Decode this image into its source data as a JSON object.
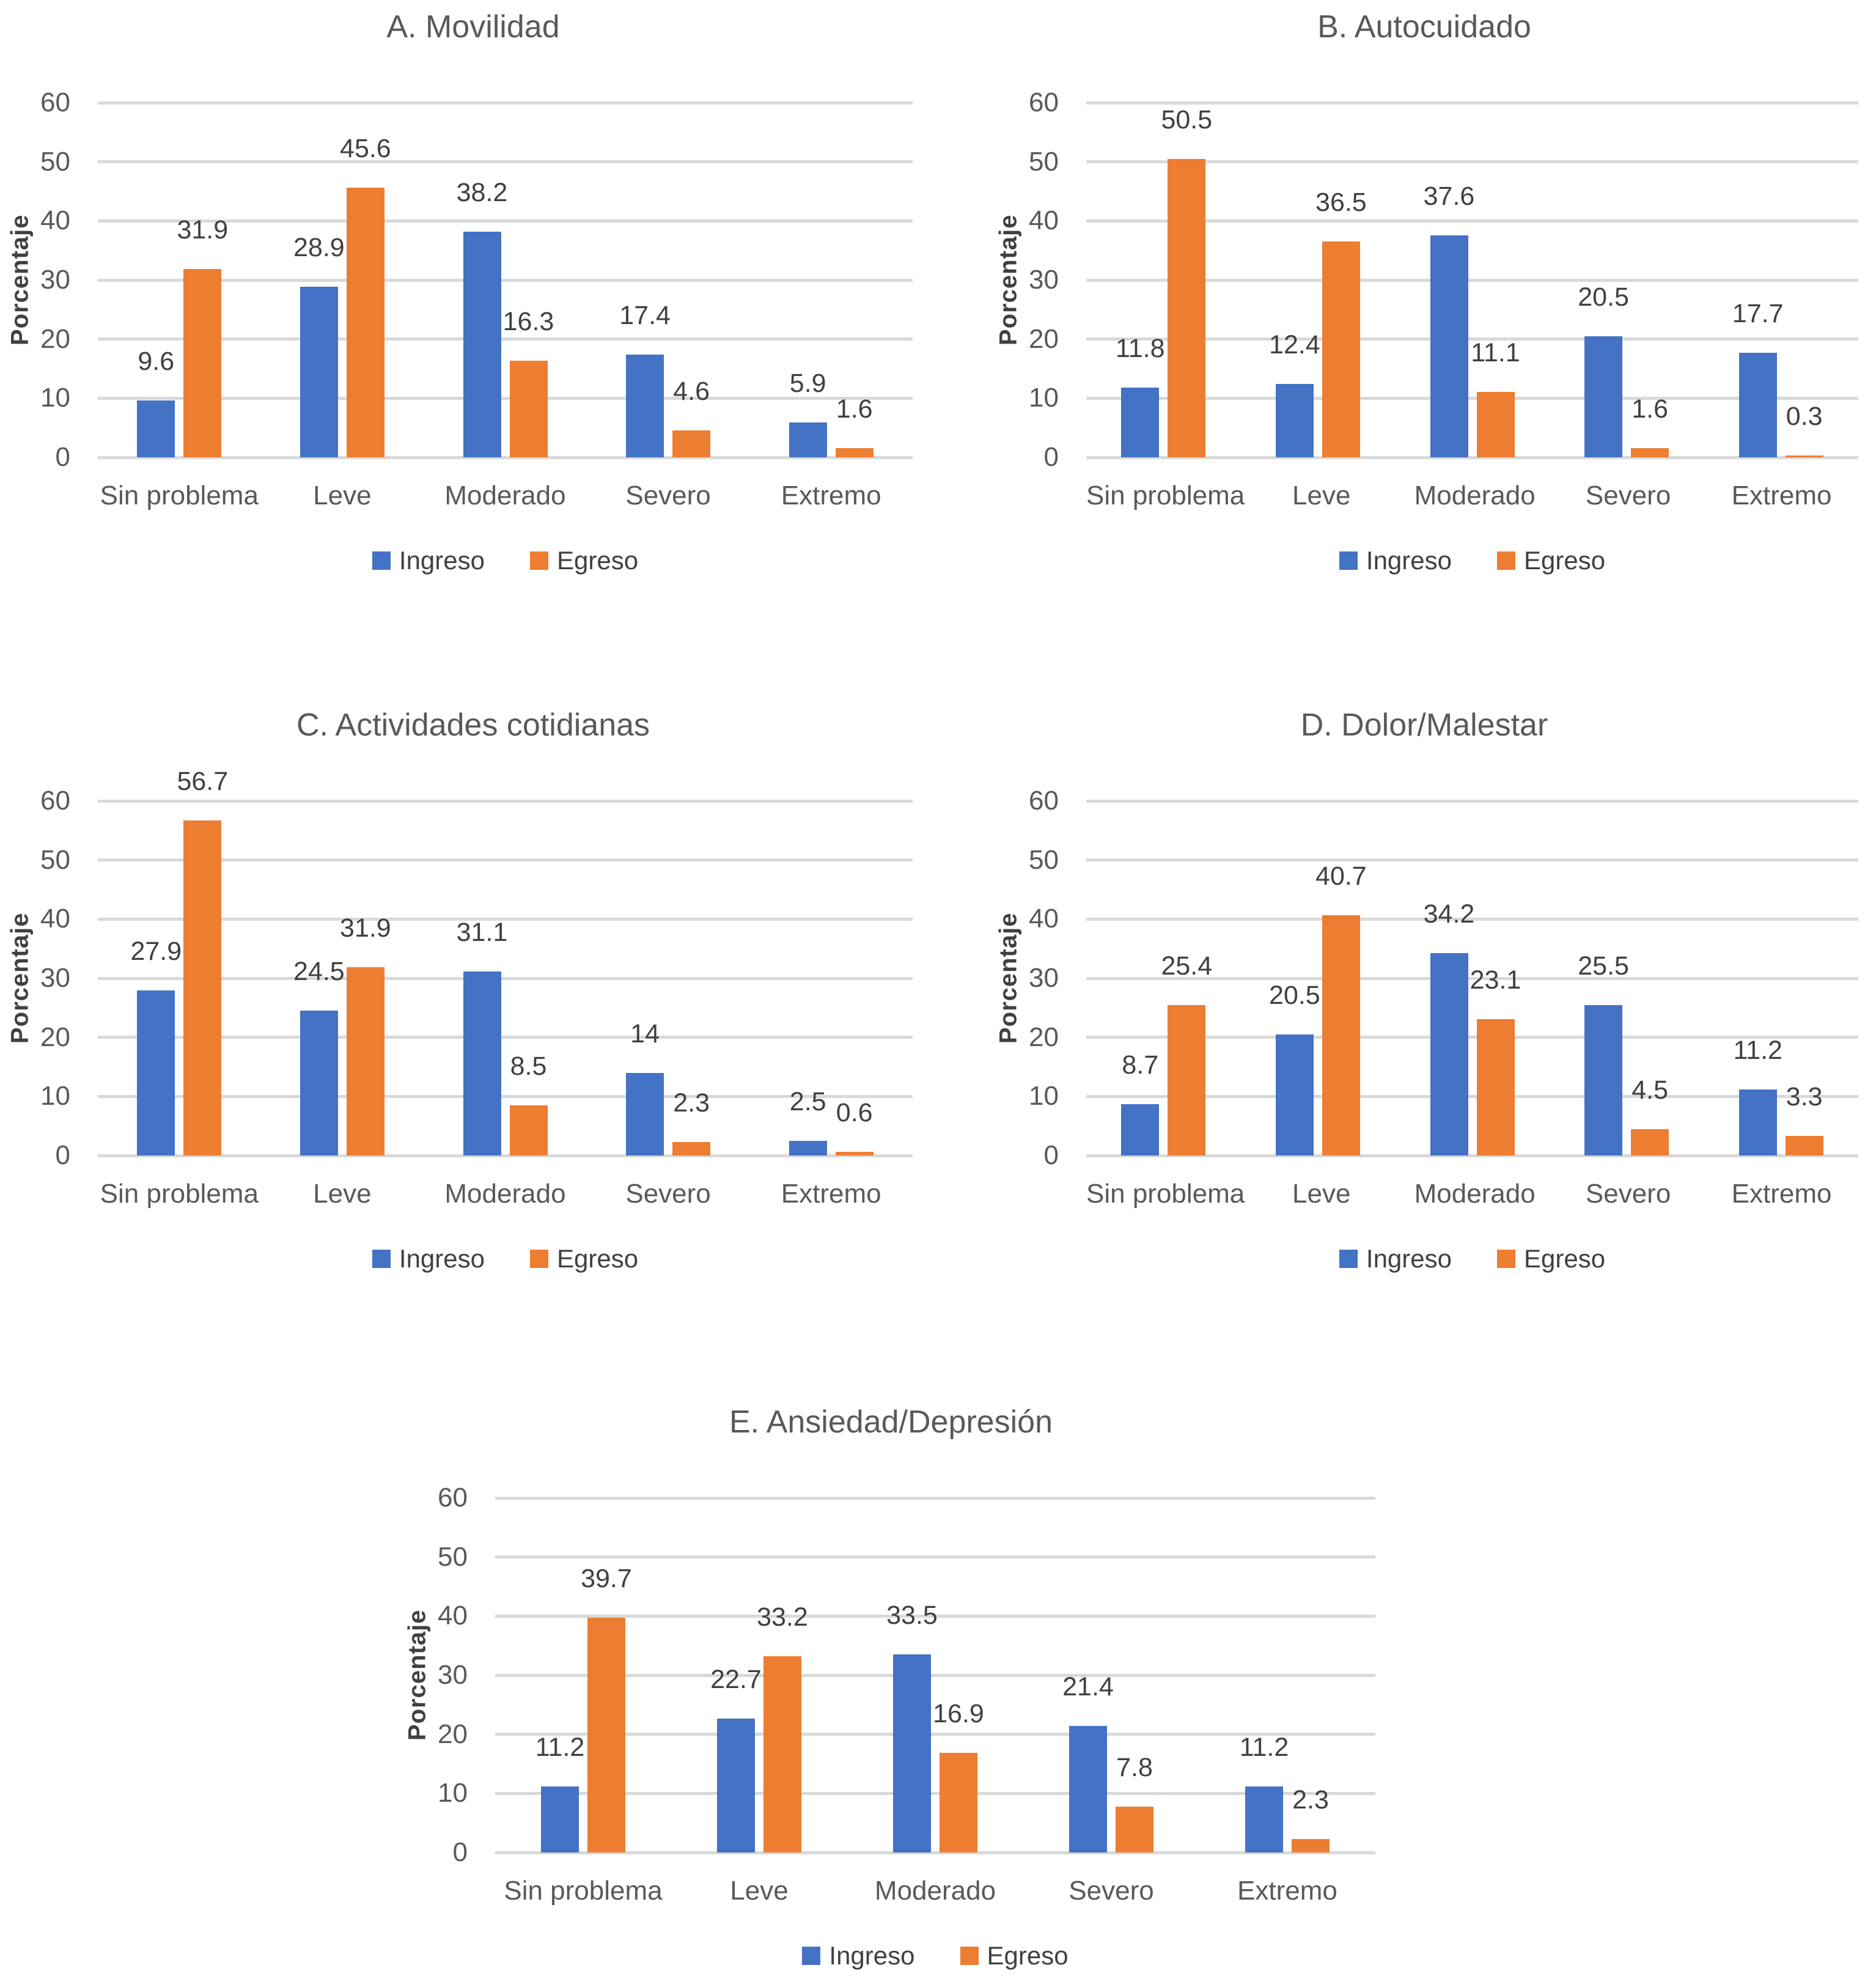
{
  "chart_data": [
    {
      "id": "A",
      "type": "bar",
      "title": "A. Movilidad",
      "ylabel": "Porcentaje",
      "xlabel": "",
      "ylim": [
        0,
        60
      ],
      "yticks": [
        0,
        10,
        20,
        30,
        40,
        50,
        60
      ],
      "grid": true,
      "legend_position": "bottom",
      "categories": [
        "Sin problema",
        "Leve",
        "Moderado",
        "Severo",
        "Extremo"
      ],
      "series": [
        {
          "name": "Ingreso",
          "color": "#4472C4",
          "values": [
            9.6,
            28.9,
            38.2,
            17.4,
            5.9
          ]
        },
        {
          "name": "Egreso",
          "color": "#ED7D31",
          "values": [
            31.9,
            45.6,
            16.3,
            4.6,
            1.6
          ]
        }
      ]
    },
    {
      "id": "B",
      "type": "bar",
      "title": "B. Autocuidado",
      "ylabel": "Porcentaje",
      "xlabel": "",
      "ylim": [
        0,
        60
      ],
      "yticks": [
        0,
        10,
        20,
        30,
        40,
        50,
        60
      ],
      "grid": true,
      "legend_position": "bottom",
      "categories": [
        "Sin problema",
        "Leve",
        "Moderado",
        "Severo",
        "Extremo"
      ],
      "series": [
        {
          "name": "Ingreso",
          "color": "#4472C4",
          "values": [
            11.8,
            12.4,
            37.6,
            20.5,
            17.7
          ]
        },
        {
          "name": "Egreso",
          "color": "#ED7D31",
          "values": [
            50.5,
            36.5,
            11.1,
            1.6,
            0.3
          ]
        }
      ]
    },
    {
      "id": "C",
      "type": "bar",
      "title": "C. Actividades cotidianas",
      "ylabel": "Porcentaje",
      "xlabel": "",
      "ylim": [
        0,
        60
      ],
      "yticks": [
        0,
        10,
        20,
        30,
        40,
        50,
        60
      ],
      "grid": true,
      "legend_position": "bottom",
      "categories": [
        "Sin problema",
        "Leve",
        "Moderado",
        "Severo",
        "Extremo"
      ],
      "series": [
        {
          "name": "Ingreso",
          "color": "#4472C4",
          "values": [
            27.9,
            24.5,
            31.1,
            14,
            2.5
          ]
        },
        {
          "name": "Egreso",
          "color": "#ED7D31",
          "values": [
            56.7,
            31.9,
            8.5,
            2.3,
            0.6
          ]
        }
      ]
    },
    {
      "id": "D",
      "type": "bar",
      "title": "D. Dolor/Malestar",
      "ylabel": "Porcentaje",
      "xlabel": "",
      "ylim": [
        0,
        60
      ],
      "yticks": [
        0,
        10,
        20,
        30,
        40,
        50,
        60
      ],
      "grid": true,
      "legend_position": "bottom",
      "categories": [
        "Sin problema",
        "Leve",
        "Moderado",
        "Severo",
        "Extremo"
      ],
      "series": [
        {
          "name": "Ingreso",
          "color": "#4472C4",
          "values": [
            8.7,
            20.5,
            34.2,
            25.5,
            11.2
          ]
        },
        {
          "name": "Egreso",
          "color": "#ED7D31",
          "values": [
            25.4,
            40.7,
            23.1,
            4.5,
            3.3
          ]
        }
      ]
    },
    {
      "id": "E",
      "type": "bar",
      "title": "E. Ansiedad/Depresión",
      "ylabel": "Porcentaje",
      "xlabel": "",
      "ylim": [
        0,
        60
      ],
      "yticks": [
        0,
        10,
        20,
        30,
        40,
        50,
        60
      ],
      "grid": true,
      "legend_position": "bottom",
      "categories": [
        "Sin problema",
        "Leve",
        "Moderado",
        "Severo",
        "Extremo"
      ],
      "series": [
        {
          "name": "Ingreso",
          "color": "#4472C4",
          "values": [
            11.2,
            22.7,
            33.5,
            21.4,
            11.2
          ]
        },
        {
          "name": "Egreso",
          "color": "#ED7D31",
          "values": [
            39.7,
            33.2,
            16.9,
            7.8,
            2.3
          ]
        }
      ]
    }
  ]
}
